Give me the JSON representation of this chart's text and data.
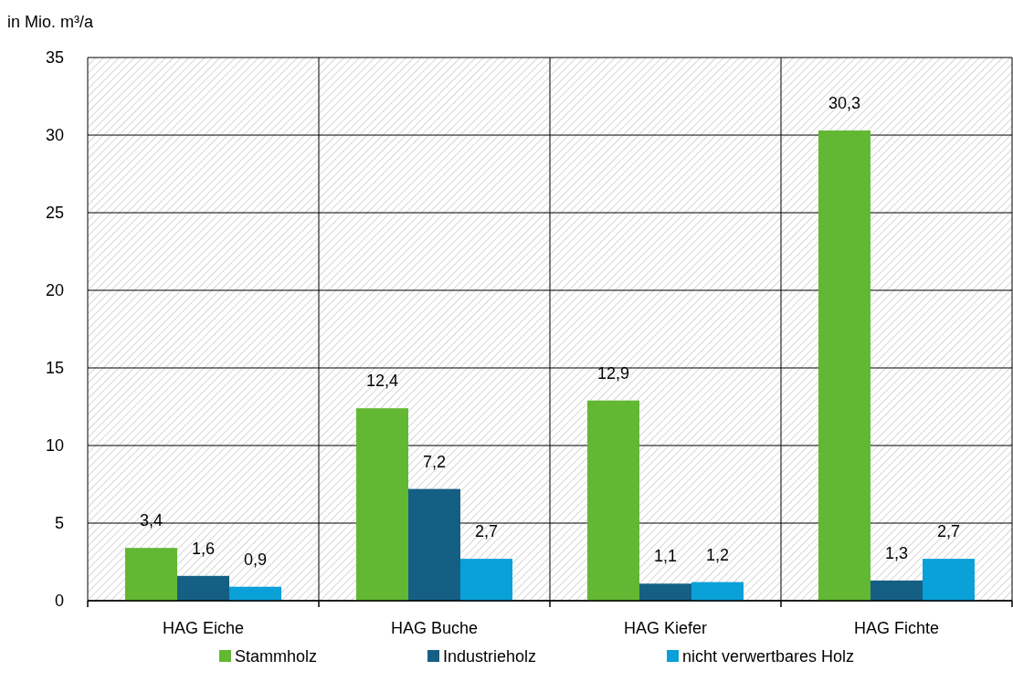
{
  "chart_data": {
    "type": "bar",
    "ylabel": "in Mio. m³/a",
    "categories": [
      "HAG Eiche",
      "HAG Buche",
      "HAG Kiefer",
      "HAG Fichte"
    ],
    "series": [
      {
        "name": "Stammholz",
        "color": "#62b832",
        "values": [
          3.4,
          12.4,
          12.9,
          30.3
        ],
        "value_labels": [
          "3,4",
          "12,4",
          "12,9",
          "30,3"
        ]
      },
      {
        "name": "Industrieholz",
        "color": "#155f85",
        "values": [
          1.6,
          7.2,
          1.1,
          1.3
        ],
        "value_labels": [
          "1,6",
          "7,2",
          "1,1",
          "1,3"
        ]
      },
      {
        "name": "nicht verwertbares Holz",
        "color": "#0aa0d8",
        "values": [
          0.9,
          2.7,
          1.2,
          2.7
        ],
        "value_labels": [
          "0,9",
          "2,7",
          "1,2",
          "2,7"
        ]
      }
    ],
    "ylim": [
      0,
      35
    ],
    "yticks": [
      0,
      5,
      10,
      15,
      20,
      25,
      30,
      35
    ],
    "grid": true,
    "legend": "bottom"
  }
}
